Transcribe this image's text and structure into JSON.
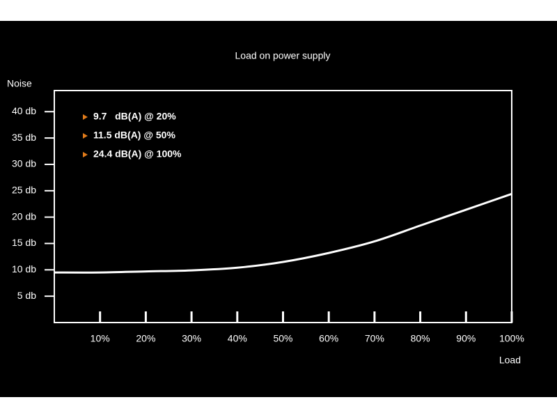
{
  "chart_data": {
    "type": "line",
    "title": "Load on power supply",
    "y_label": "Noise",
    "x_label": "Load",
    "x": [
      0,
      10,
      20,
      30,
      40,
      50,
      60,
      70,
      80,
      90,
      100
    ],
    "series": [
      {
        "color": "#ffffff",
        "values": [
          9.5,
          9.5,
          9.7,
          9.9,
          10.4,
          11.5,
          13.2,
          15.4,
          18.4,
          21.4,
          24.4
        ]
      }
    ],
    "xlim": [
      0,
      100
    ],
    "xticks": [
      {
        "value": 10,
        "label": "10%"
      },
      {
        "value": 20,
        "label": "20%"
      },
      {
        "value": 30,
        "label": "30%"
      },
      {
        "value": 40,
        "label": "40%"
      },
      {
        "value": 50,
        "label": "50%"
      },
      {
        "value": 60,
        "label": "60%"
      },
      {
        "value": 70,
        "label": "70%"
      },
      {
        "value": 80,
        "label": "80%"
      },
      {
        "value": 90,
        "label": "90%"
      },
      {
        "value": 100,
        "label": "100%"
      }
    ],
    "ylim": [
      0,
      44
    ],
    "yticks": [
      {
        "value": 5,
        "label": "5 db"
      },
      {
        "value": 10,
        "label": "10 db"
      },
      {
        "value": 15,
        "label": "15 db"
      },
      {
        "value": 20,
        "label": "20 db"
      },
      {
        "value": 25,
        "label": "25 db"
      },
      {
        "value": 30,
        "label": "30 db"
      },
      {
        "value": 35,
        "label": "35 db"
      },
      {
        "value": 40,
        "label": "40 db"
      }
    ],
    "grid": true,
    "annotations": [
      "9.7   dB(A) @ 20%",
      "11.5 dB(A) @ 50%",
      "24.4 dB(A) @ 100%"
    ],
    "annotation_marker_color": "#e07b1a"
  }
}
